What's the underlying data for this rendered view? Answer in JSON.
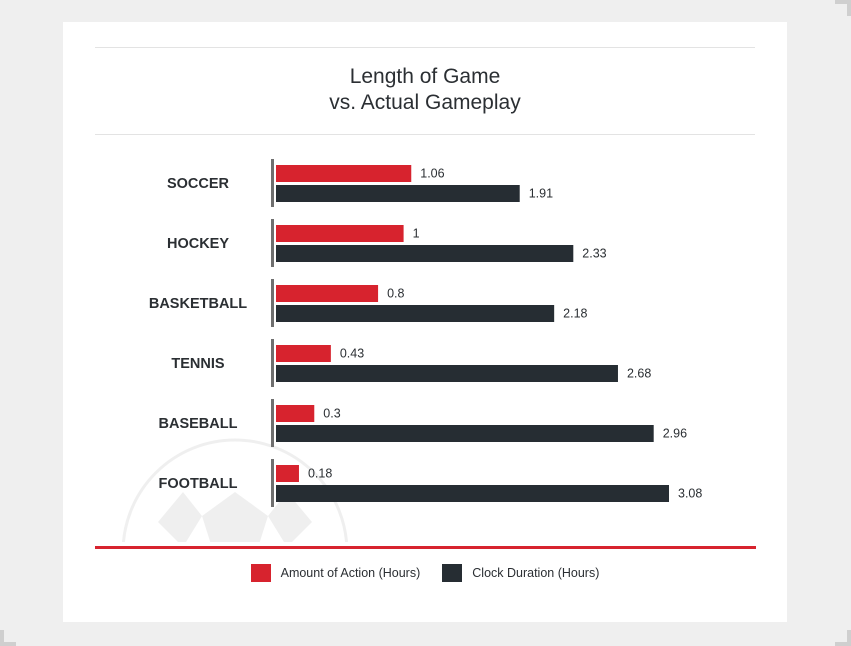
{
  "title_lines": [
    "Length of Game",
    "vs. Actual Gameplay"
  ],
  "colors": {
    "action": "#d7232e",
    "clock": "#262d33",
    "label": "#2b2f33",
    "axis": "#6f6f6f"
  },
  "legend": {
    "action_label": "Amount of Action (Hours)",
    "clock_label": "Clock Duration (Hours)"
  },
  "chart_data": {
    "type": "bar",
    "orientation": "horizontal",
    "title": "Length of Game vs. Actual Gameplay",
    "categories": [
      "SOCCER",
      "HOCKEY",
      "BASKETBALL",
      "TENNIS",
      "BASEBALL",
      "FOOTBALL"
    ],
    "series": [
      {
        "name": "Amount of Action (Hours)",
        "values": [
          1.06,
          1,
          0.8,
          0.43,
          0.3,
          0.18
        ],
        "labels": [
          "1.06",
          "1",
          "0.8",
          "0.43",
          "0.3",
          "0.18"
        ]
      },
      {
        "name": "Clock Duration (Hours)",
        "values": [
          1.91,
          2.33,
          2.18,
          2.68,
          2.96,
          3.08
        ],
        "labels": [
          "1.91",
          "2.33",
          "2.18",
          "2.68",
          "2.96",
          "3.08"
        ]
      }
    ],
    "xlim": [
      0,
      3.08
    ],
    "xlabel": "",
    "ylabel": "",
    "grid": false,
    "legend_position": "bottom"
  }
}
